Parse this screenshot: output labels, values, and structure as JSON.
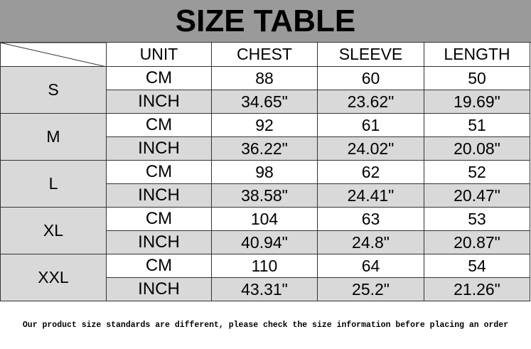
{
  "title": "SIZE TABLE",
  "columns": [
    "UNIT",
    "CHEST",
    "SLEEVE",
    "LENGTH"
  ],
  "sizes": [
    {
      "size": "S",
      "rows": [
        [
          "CM",
          "88",
          "60",
          "50"
        ],
        [
          "INCH",
          "34.65\"",
          "23.62\"",
          "19.69\""
        ]
      ]
    },
    {
      "size": "M",
      "rows": [
        [
          "CM",
          "92",
          "61",
          "51"
        ],
        [
          "INCH",
          "36.22\"",
          "24.02\"",
          "20.08\""
        ]
      ]
    },
    {
      "size": "L",
      "rows": [
        [
          "CM",
          "98",
          "62",
          "52"
        ],
        [
          "INCH",
          "38.58\"",
          "24.41\"",
          "20.47\""
        ]
      ]
    },
    {
      "size": "XL",
      "rows": [
        [
          "CM",
          "104",
          "63",
          "53"
        ],
        [
          "INCH",
          "40.94\"",
          "24.8\"",
          "20.87\""
        ]
      ]
    },
    {
      "size": "XXL",
      "rows": [
        [
          "CM",
          "110",
          "64",
          "54"
        ],
        [
          "INCH",
          "43.31\"",
          "25.2\"",
          "21.26\""
        ]
      ]
    }
  ],
  "note": "Our product size standards are different, please check the size information before placing an order"
}
